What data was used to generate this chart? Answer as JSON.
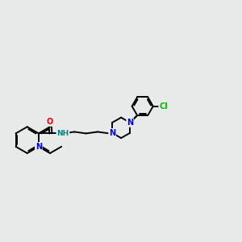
{
  "bg_color": "#e8eaea",
  "bond_color": "#000000",
  "bond_width": 1.4,
  "atom_colors": {
    "N": "#0000ee",
    "O": "#ee0000",
    "Cl": "#00bb00",
    "NH": "#008888",
    "C": "#000000"
  },
  "figsize": [
    3.0,
    3.0
  ],
  "dpi": 100
}
